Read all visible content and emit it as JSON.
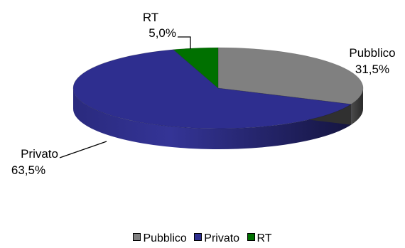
{
  "chart_data": {
    "type": "pie",
    "style": "3d",
    "series": [
      {
        "name": "Pubblico",
        "value": 31.5,
        "label": "31,5%",
        "color": "#808080"
      },
      {
        "name": "Privato",
        "value": 63.5,
        "label": "63,5%",
        "color": "#2E2E8F"
      },
      {
        "name": "RT",
        "value": 5.0,
        "label": "5,0%",
        "color": "#007000"
      }
    ],
    "legend": {
      "placement": "bottom"
    }
  }
}
